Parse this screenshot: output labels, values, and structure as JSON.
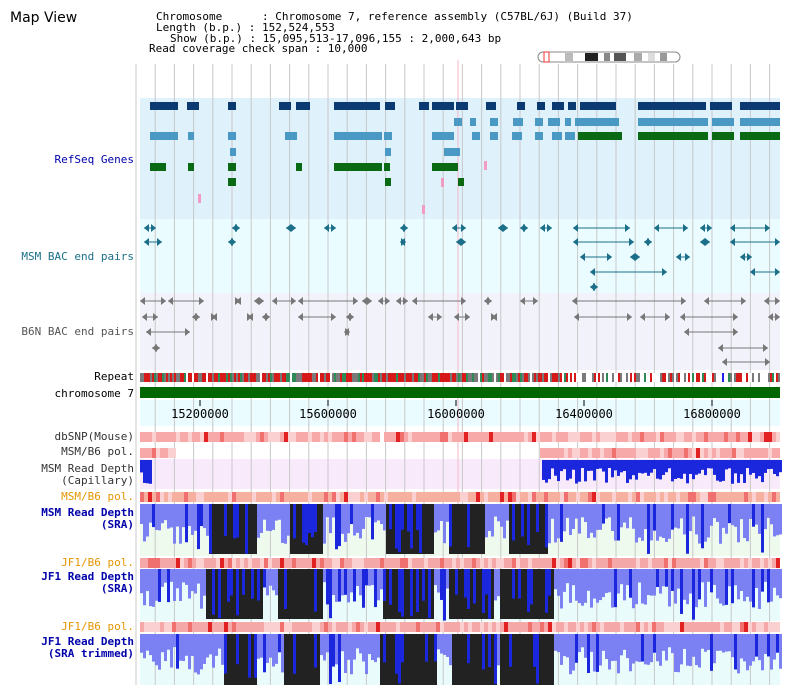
{
  "app": {
    "title": "Map View"
  },
  "info": {
    "chromosome_line": "Chromosome      : Chromosome 7, reference assembly (C57BL/6J) (Build 37)",
    "length_line": "Length (b.p.) : 152,524,553",
    "show_line": "Show (b.p.) : 15,095,513-17,096,155 : 2,000,643 bp",
    "read_cov_line": "Read coverage check span : 10,000"
  },
  "axis": {
    "chromosome_label": "chromosome 7",
    "ticks": [
      "15200000",
      "15600000",
      "16000000",
      "16400000",
      "16800000"
    ]
  },
  "tracks": {
    "refseq": "RefSeq Genes",
    "msm_bac": "MSM BAC end pairs",
    "b6n_bac": "B6N BAC end pairs",
    "repeat": "Repeat",
    "dbsnp": "dbSNP(Mouse)",
    "msm_b6_pol_1": "MSM/B6 pol.",
    "msm_read_depth_cap": "MSM Read Depth\n(Capillary)",
    "msm_b6_pol_2": "MSM/B6 pol.",
    "msm_read_depth_sra": "MSM Read Depth\n(SRA)",
    "jf1_b6_pol_1": "JF1/B6 pol.",
    "jf1_read_depth_sra": "JF1 Read Depth\n(SRA)",
    "jf1_b6_pol_2": "JF1/B6 pol.",
    "jf1_read_depth_trim": "JF1 Read Depth\n(SRA trimmed)"
  },
  "colors": {
    "refseq_bg": "#dff1fb",
    "msm_bac_bg": "#eafcff",
    "b6n_bac_bg": "#f2f2fb",
    "label_blue": "#0000aa",
    "label_orange": "#e69500",
    "gene_dark": "#0b3a73",
    "gene_mid": "#4a98c4",
    "gene_green": "#0a6a14",
    "msm_bac_color": "#1b6f88",
    "b6n_bac_color": "#777777",
    "depth_blue": "#1a27dd",
    "depth_light": "#7b80f2",
    "depth_black": "#222222",
    "snp_pink": "#f7a9a9",
    "snp_red": "#e22222",
    "chrom_green": "#006600"
  }
}
